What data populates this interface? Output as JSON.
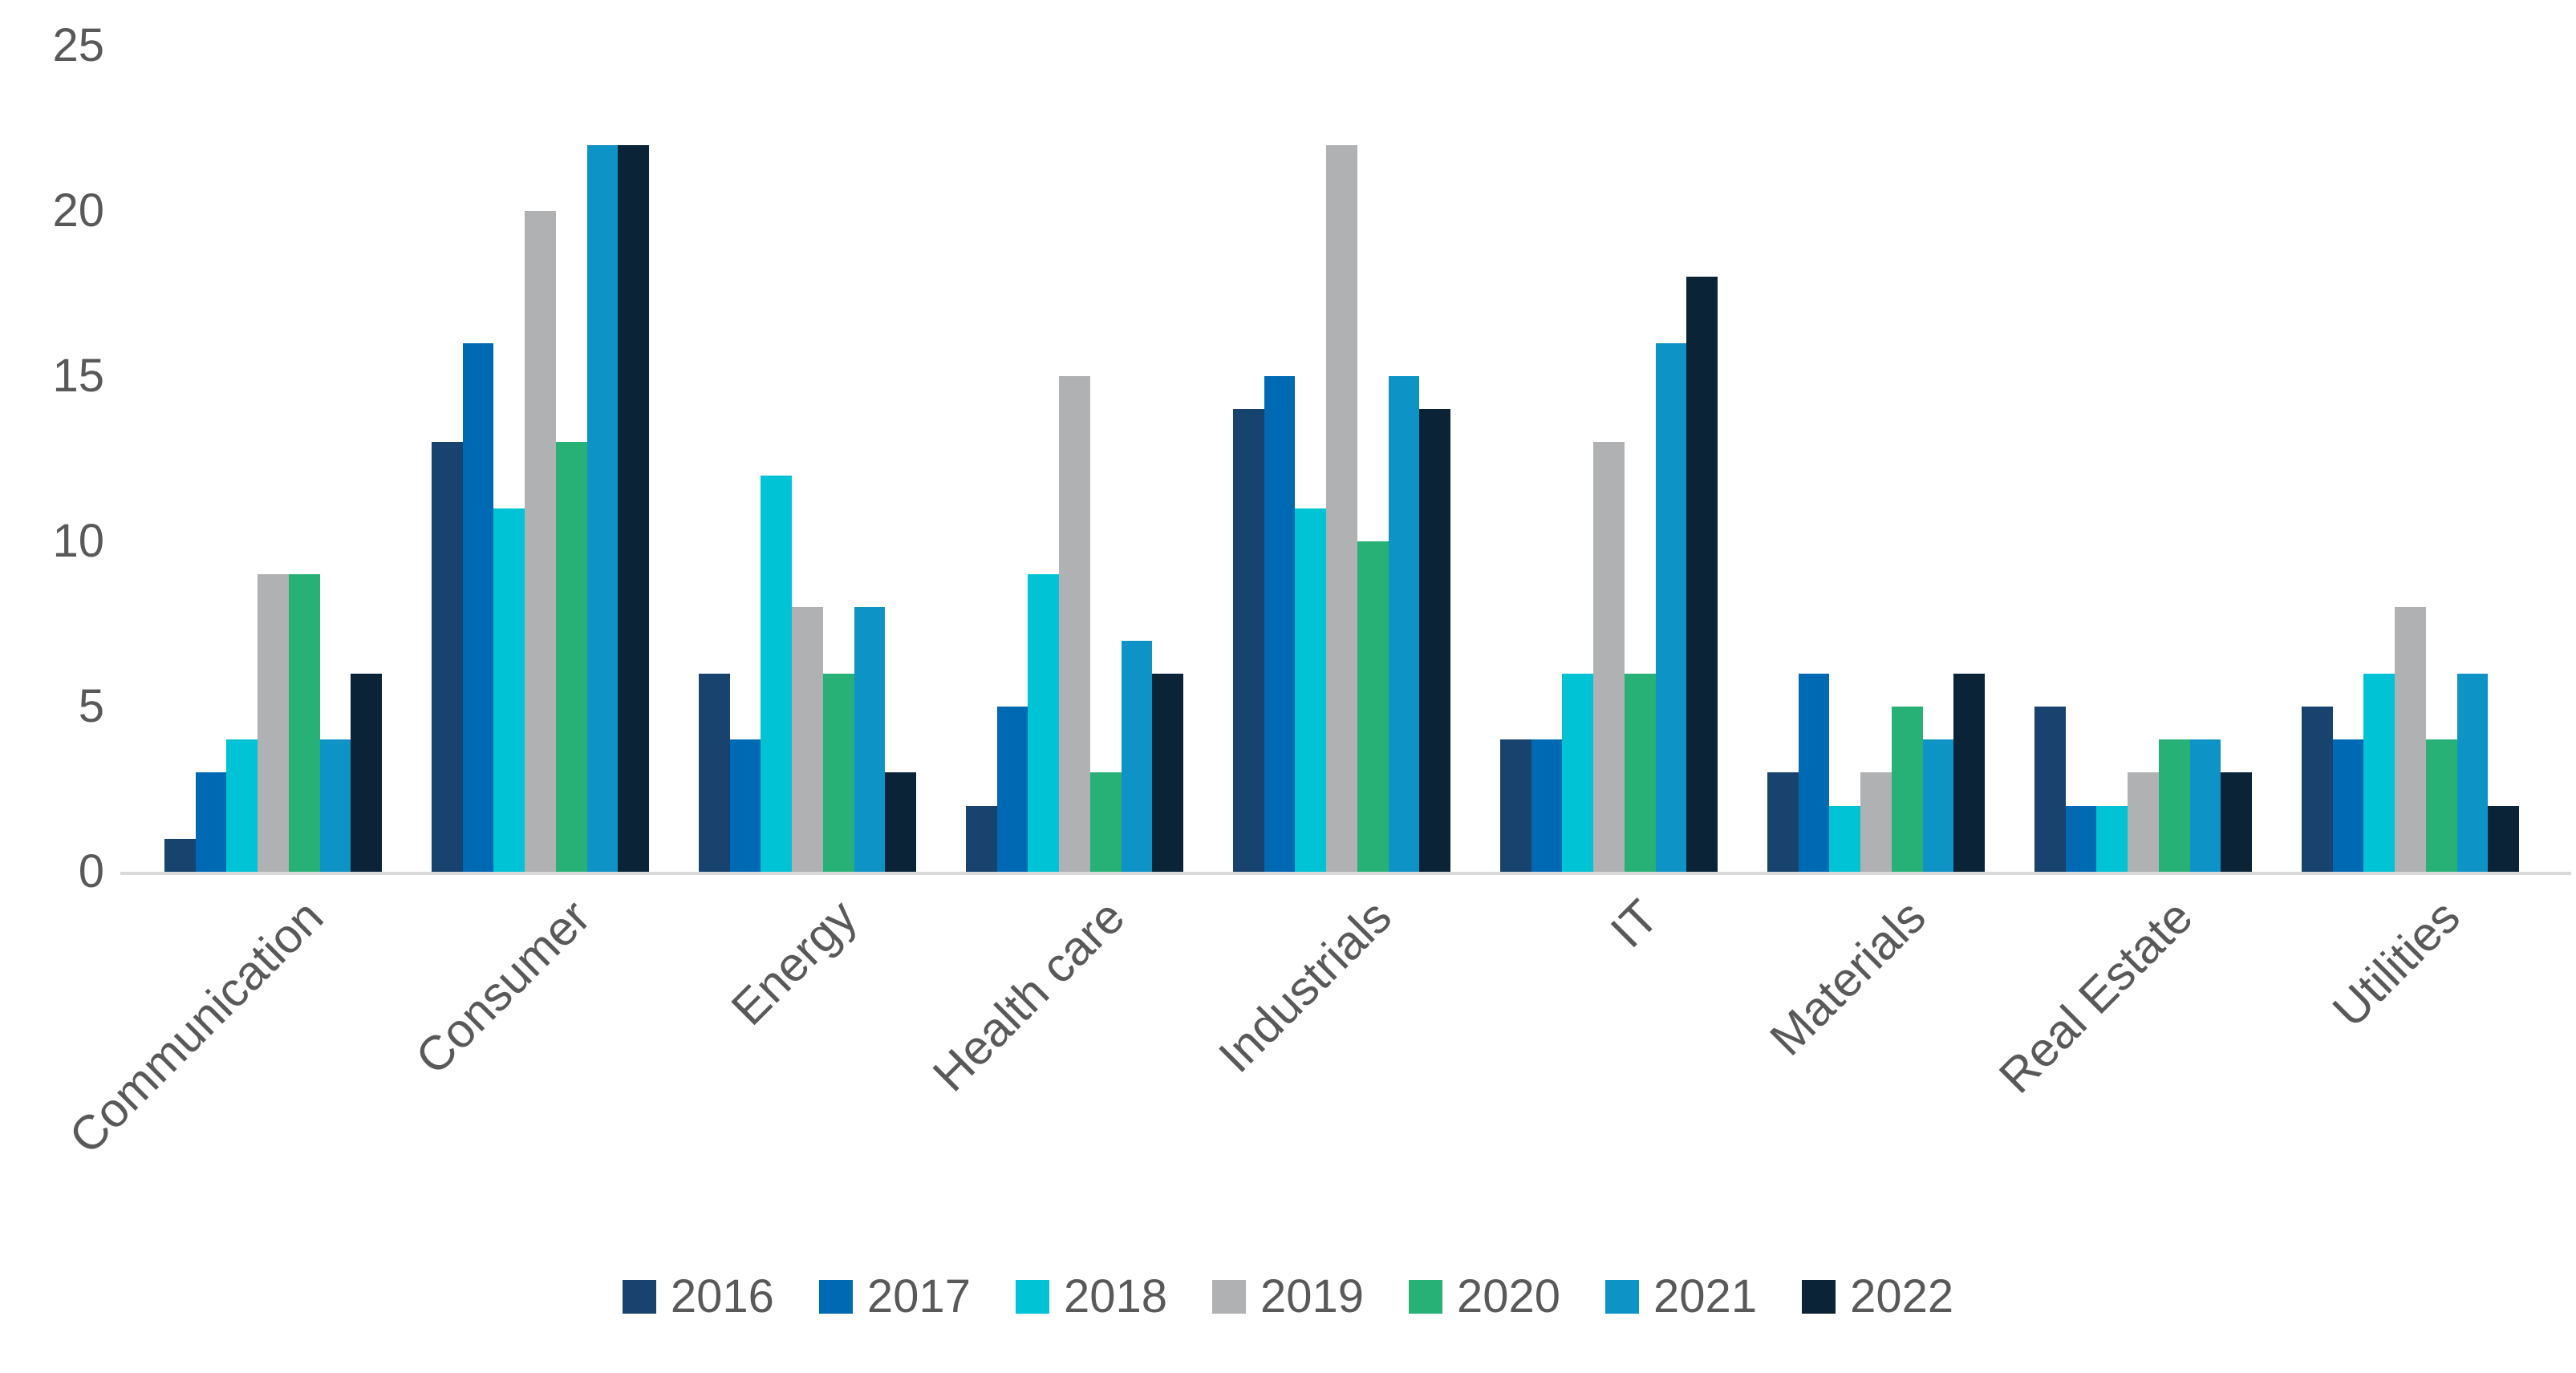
{
  "chart_data": {
    "type": "bar",
    "title": "",
    "xlabel": "",
    "ylabel": "",
    "ylim": [
      0,
      25
    ],
    "yticks": [
      0,
      5,
      10,
      15,
      20,
      25
    ],
    "grid": false,
    "legend_position": "bottom",
    "axis_text_color": "#595959",
    "axis_line_color": "#d9d9d9",
    "categories": [
      "Communication",
      "Consumer",
      "Energy",
      "Health care",
      "Industrials",
      "IT",
      "Materials",
      "Real Estate",
      "Utilities"
    ],
    "series": [
      {
        "name": "2016",
        "color": "#17436E",
        "values": [
          1,
          13,
          6,
          2,
          14,
          4,
          3,
          5,
          5
        ]
      },
      {
        "name": "2017",
        "color": "#0069B4",
        "values": [
          3,
          16,
          4,
          5,
          15,
          4,
          6,
          2,
          4
        ]
      },
      {
        "name": "2018",
        "color": "#00C3D6",
        "values": [
          4,
          11,
          12,
          9,
          11,
          6,
          2,
          2,
          6
        ]
      },
      {
        "name": "2019",
        "color": "#AFB1B3",
        "values": [
          9,
          20,
          8,
          15,
          22,
          13,
          3,
          3,
          8
        ]
      },
      {
        "name": "2020",
        "color": "#27B176",
        "values": [
          9,
          13,
          6,
          3,
          10,
          6,
          5,
          4,
          4
        ]
      },
      {
        "name": "2021",
        "color": "#0E93C7",
        "values": [
          4,
          22,
          8,
          7,
          15,
          16,
          4,
          4,
          6
        ]
      },
      {
        "name": "2022",
        "color": "#0B2336",
        "values": [
          6,
          22,
          3,
          6,
          14,
          18,
          6,
          3,
          2
        ]
      }
    ]
  }
}
